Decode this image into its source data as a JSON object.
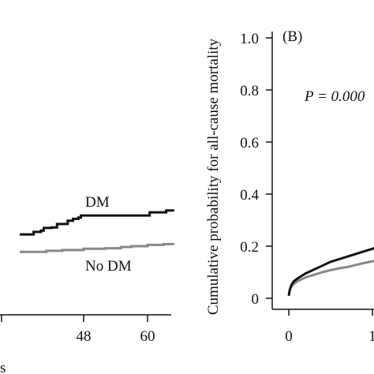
{
  "chart_data": [
    {
      "type": "line",
      "panel": "",
      "xlabel": "s",
      "ylabel": "",
      "x_ticks": [
        48,
        60
      ],
      "xlim": [
        36,
        65
      ],
      "series": [
        {
          "name": "DM",
          "color": "#111111",
          "x": [
            36,
            38,
            38.6,
            40,
            40.5,
            42,
            43,
            44,
            45,
            46,
            47,
            47.5,
            60,
            60.4,
            63,
            63.5,
            65
          ],
          "y": [
            0.245,
            0.245,
            0.255,
            0.26,
            0.27,
            0.272,
            0.285,
            0.285,
            0.298,
            0.305,
            0.31,
            0.318,
            0.318,
            0.33,
            0.33,
            0.337,
            0.337
          ]
        },
        {
          "name": "No DM",
          "color": "#888888",
          "x": [
            36,
            39,
            41,
            44,
            48,
            52,
            55,
            57,
            60,
            63,
            65
          ],
          "y": [
            0.178,
            0.178,
            0.182,
            0.185,
            0.19,
            0.192,
            0.197,
            0.2,
            0.205,
            0.208,
            0.208
          ]
        }
      ]
    },
    {
      "type": "line",
      "panel": "(B)",
      "ylabel": "Cumulative probability for all-cause mortality",
      "y_ticks": [
        "0",
        "0.2",
        "0.4",
        "0.6",
        "0.8",
        "1.0"
      ],
      "x_ticks": [
        "0",
        "1"
      ],
      "ylim": [
        0,
        1
      ],
      "xlim": [
        -0.1,
        1.05
      ],
      "annotation": "P = 0.000",
      "series": [
        {
          "name": "DM",
          "color": "#111111",
          "x": [
            0,
            0.01,
            0.03,
            0.06,
            0.1,
            0.15,
            0.2,
            0.3,
            0.4,
            0.5,
            0.6,
            0.7,
            0.8,
            0.9,
            1.0,
            1.05
          ],
          "y": [
            0.01,
            0.03,
            0.05,
            0.065,
            0.075,
            0.085,
            0.095,
            0.11,
            0.125,
            0.14,
            0.15,
            0.16,
            0.17,
            0.18,
            0.19,
            0.195
          ]
        },
        {
          "name": "No DM",
          "color": "#888888",
          "x": [
            0,
            0.01,
            0.03,
            0.06,
            0.1,
            0.15,
            0.2,
            0.3,
            0.4,
            0.5,
            0.6,
            0.7,
            0.8,
            0.9,
            1.0,
            1.05
          ],
          "y": [
            0.01,
            0.03,
            0.045,
            0.055,
            0.065,
            0.072,
            0.08,
            0.09,
            0.1,
            0.108,
            0.115,
            0.12,
            0.128,
            0.135,
            0.142,
            0.145
          ]
        }
      ]
    }
  ]
}
